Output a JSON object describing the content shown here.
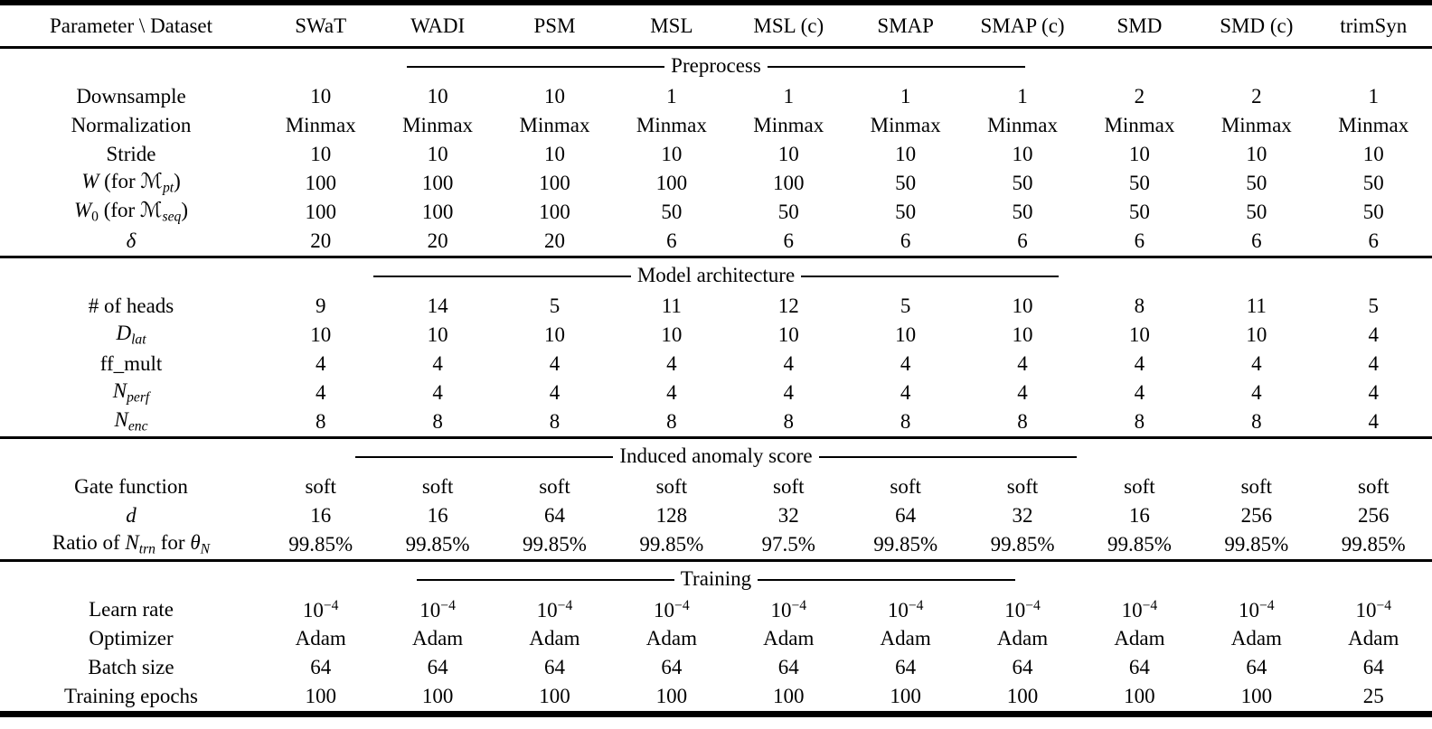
{
  "page": {
    "background": "#ffffff",
    "text_color": "#000000",
    "rule_color": "#000000"
  },
  "table": {
    "columns": [
      "Parameter \\ Dataset",
      "SWaT",
      "WADI",
      "PSM",
      "MSL",
      "MSL (c)",
      "SMAP",
      "SMAP (c)",
      "SMD",
      "SMD (c)",
      "trimSyn"
    ],
    "sections": [
      {
        "title": "Preprocess",
        "rows": [
          {
            "label": "Downsample",
            "values": [
              "10",
              "10",
              "10",
              "1",
              "1",
              "1",
              "1",
              "2",
              "2",
              "1"
            ]
          },
          {
            "label": "Normalization",
            "values": [
              "Minmax",
              "Minmax",
              "Minmax",
              "Minmax",
              "Minmax",
              "Minmax",
              "Minmax",
              "Minmax",
              "Minmax",
              "Minmax"
            ]
          },
          {
            "label": "Stride",
            "values": [
              "10",
              "10",
              "10",
              "10",
              "10",
              "10",
              "10",
              "10",
              "10",
              "10"
            ]
          },
          {
            "label": [
              {
                "t": "W",
                "s": "i"
              },
              {
                "t": " (for "
              },
              {
                "t": "ℳ",
                "s": "cal"
              },
              {
                "t": "pt",
                "s": "isub"
              },
              {
                "t": ")"
              }
            ],
            "values": [
              "100",
              "100",
              "100",
              "100",
              "100",
              "50",
              "50",
              "50",
              "50",
              "50"
            ]
          },
          {
            "label": [
              {
                "t": "W",
                "s": "i"
              },
              {
                "t": "0",
                "s": "sub"
              },
              {
                "t": " (for "
              },
              {
                "t": "ℳ",
                "s": "cal"
              },
              {
                "t": "seq",
                "s": "isub"
              },
              {
                "t": ")"
              }
            ],
            "values": [
              "100",
              "100",
              "100",
              "50",
              "50",
              "50",
              "50",
              "50",
              "50",
              "50"
            ]
          },
          {
            "label": [
              {
                "t": "δ",
                "s": "i"
              }
            ],
            "values": [
              "20",
              "20",
              "20",
              "6",
              "6",
              "6",
              "6",
              "6",
              "6",
              "6"
            ]
          }
        ]
      },
      {
        "title": "Model architecture",
        "rows": [
          {
            "label": "# of heads",
            "values": [
              "9",
              "14",
              "5",
              "11",
              "12",
              "5",
              "10",
              "8",
              "11",
              "5"
            ]
          },
          {
            "label": [
              {
                "t": "D",
                "s": "i"
              },
              {
                "t": "lat",
                "s": "isub"
              }
            ],
            "values": [
              "10",
              "10",
              "10",
              "10",
              "10",
              "10",
              "10",
              "10",
              "10",
              "4"
            ]
          },
          {
            "label": "ff_mult",
            "values": [
              "4",
              "4",
              "4",
              "4",
              "4",
              "4",
              "4",
              "4",
              "4",
              "4"
            ]
          },
          {
            "label": [
              {
                "t": "N",
                "s": "i"
              },
              {
                "t": "perf",
                "s": "isub"
              }
            ],
            "values": [
              "4",
              "4",
              "4",
              "4",
              "4",
              "4",
              "4",
              "4",
              "4",
              "4"
            ]
          },
          {
            "label": [
              {
                "t": "N",
                "s": "i"
              },
              {
                "t": "enc",
                "s": "isub"
              }
            ],
            "values": [
              "8",
              "8",
              "8",
              "8",
              "8",
              "8",
              "8",
              "8",
              "8",
              "4"
            ]
          }
        ]
      },
      {
        "title": "Induced anomaly score",
        "rows": [
          {
            "label": "Gate function",
            "values": [
              "soft",
              "soft",
              "soft",
              "soft",
              "soft",
              "soft",
              "soft",
              "soft",
              "soft",
              "soft"
            ]
          },
          {
            "label": [
              {
                "t": "d",
                "s": "i"
              }
            ],
            "values": [
              "16",
              "16",
              "64",
              "128",
              "32",
              "64",
              "32",
              "16",
              "256",
              "256"
            ]
          },
          {
            "label": [
              {
                "t": "Ratio of "
              },
              {
                "t": "N",
                "s": "i"
              },
              {
                "t": "trn",
                "s": "isub"
              },
              {
                "t": " for "
              },
              {
                "t": "θ",
                "s": "i"
              },
              {
                "t": "N",
                "s": "isub"
              }
            ],
            "values": [
              "99.85%",
              "99.85%",
              "99.85%",
              "99.85%",
              "97.5%",
              "99.85%",
              "99.85%",
              "99.85%",
              "99.85%",
              "99.85%"
            ]
          }
        ]
      },
      {
        "title": "Training",
        "rows": [
          {
            "label": "Learn rate",
            "values": [
              [
                {
                  "t": "10"
                },
                {
                  "t": "−4",
                  "s": "sup"
                }
              ],
              [
                {
                  "t": "10"
                },
                {
                  "t": "−4",
                  "s": "sup"
                }
              ],
              [
                {
                  "t": "10"
                },
                {
                  "t": "−4",
                  "s": "sup"
                }
              ],
              [
                {
                  "t": "10"
                },
                {
                  "t": "−4",
                  "s": "sup"
                }
              ],
              [
                {
                  "t": "10"
                },
                {
                  "t": "−4",
                  "s": "sup"
                }
              ],
              [
                {
                  "t": "10"
                },
                {
                  "t": "−4",
                  "s": "sup"
                }
              ],
              [
                {
                  "t": "10"
                },
                {
                  "t": "−4",
                  "s": "sup"
                }
              ],
              [
                {
                  "t": "10"
                },
                {
                  "t": "−4",
                  "s": "sup"
                }
              ],
              [
                {
                  "t": "10"
                },
                {
                  "t": "−4",
                  "s": "sup"
                }
              ],
              [
                {
                  "t": "10"
                },
                {
                  "t": "−4",
                  "s": "sup"
                }
              ]
            ]
          },
          {
            "label": "Optimizer",
            "values": [
              "Adam",
              "Adam",
              "Adam",
              "Adam",
              "Adam",
              "Adam",
              "Adam",
              "Adam",
              "Adam",
              "Adam"
            ]
          },
          {
            "label": "Batch size",
            "values": [
              "64",
              "64",
              "64",
              "64",
              "64",
              "64",
              "64",
              "64",
              "64",
              "64"
            ]
          },
          {
            "label": "Training epochs",
            "values": [
              "100",
              "100",
              "100",
              "100",
              "100",
              "100",
              "100",
              "100",
              "100",
              "25"
            ]
          }
        ]
      }
    ]
  }
}
